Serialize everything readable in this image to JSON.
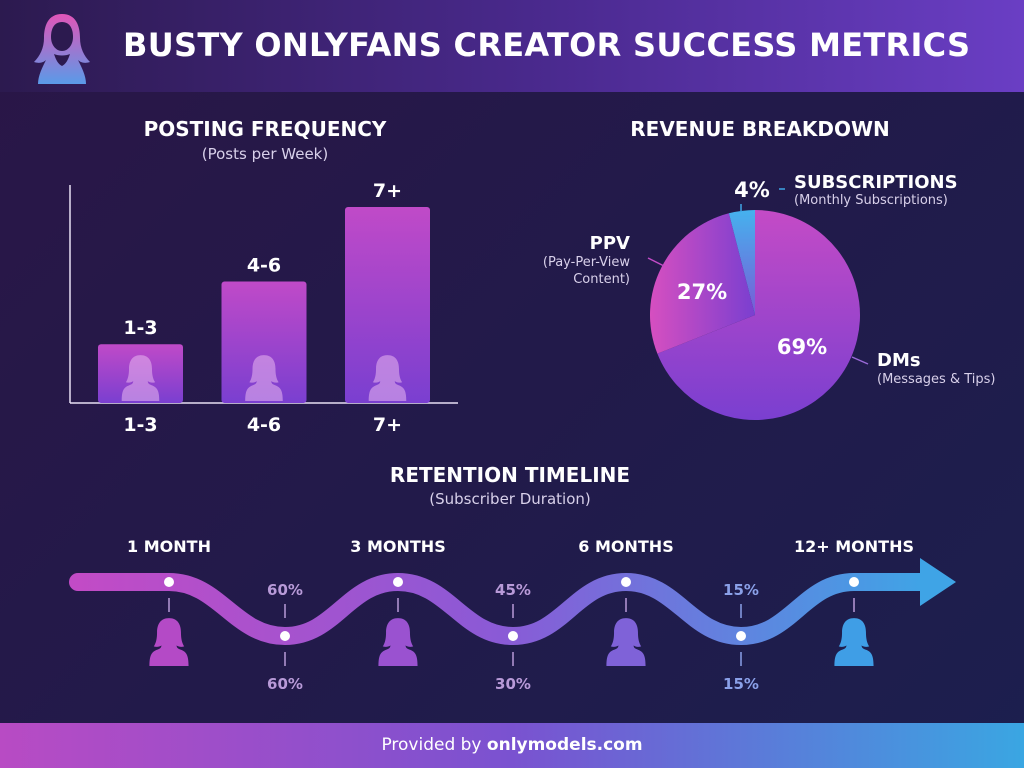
{
  "header": {
    "title": "BUSTY ONLYFANS CREATOR SUCCESS METRICS",
    "logo_icon": "woman-silhouette-icon"
  },
  "footer": {
    "prefix": "Provided by",
    "site": "onlymodels.com"
  },
  "chart_data": [
    {
      "type": "bar",
      "title": "POSTING FREQUENCY",
      "subtitle": "(Posts per Week)",
      "categories": [
        "1-3",
        "4-6",
        "7+"
      ],
      "data_labels": [
        "1-3",
        "4-6",
        "7+"
      ],
      "values": [
        30,
        62,
        100
      ],
      "value_scale": "relative (no axis values printed)",
      "colors": {
        "top": "#c04ac8",
        "bottom": "#7a3fd0"
      },
      "bar_icon": "woman-silhouette-icon"
    },
    {
      "type": "pie",
      "title": "REVENUE BREAKDOWN",
      "slices": [
        {
          "name": "DMs",
          "desc": "(Messages & Tips)",
          "value": 69,
          "label": "69%",
          "color": "#9a3fd0"
        },
        {
          "name": "PPV",
          "desc": "(Pay-Per-View Content)",
          "desc_lines": [
            "(Pay-Per-View",
            "Content)"
          ],
          "value": 27,
          "label": "27%",
          "color": "#c24bc6"
        },
        {
          "name": "SUBSCRIPTIONS",
          "desc": "(Monthly Subscriptions)",
          "value": 4,
          "label": "4%",
          "color": "#3fa4e6"
        }
      ]
    },
    {
      "type": "line",
      "title": "RETENTION TIMELINE",
      "subtitle": "(Subscriber Duration)",
      "milestones": [
        "1 MONTH",
        "3 MONTHS",
        "6 MONTHS",
        "12+ MONTHS"
      ],
      "between_points": [
        {
          "upper": "60%",
          "lower": "60%"
        },
        {
          "upper": "45%",
          "lower": "30%"
        },
        {
          "upper": "15%",
          "lower": "15%"
        }
      ],
      "colors": {
        "start": "#c24bc6",
        "end": "#3fa4e6"
      },
      "milestone_icon": "woman-silhouette-icon"
    }
  ]
}
